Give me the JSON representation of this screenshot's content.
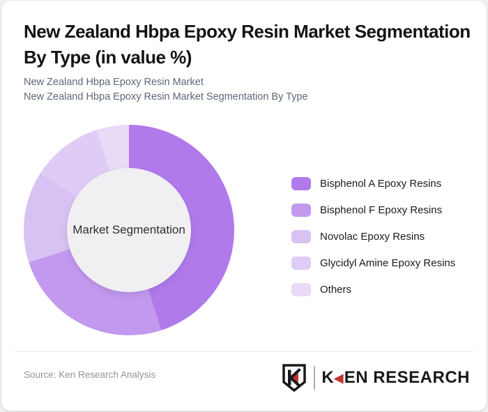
{
  "page": {
    "background_color": "#f1f2f4",
    "card_background": "#ffffff"
  },
  "header": {
    "title_line1": "New Zealand Hbpa Epoxy Resin Market Segmentation",
    "title_line2": "By Type (in value %)",
    "subtitle1": "New Zealand Hbpa Epoxy Resin Market",
    "subtitle2": "New Zealand Hbpa Epoxy Resin Market Segmentation By Type"
  },
  "chart_data": {
    "type": "pie",
    "variant": "donut",
    "title": "New Zealand Hbpa Epoxy Resin Market Segmentation By Type (in value %)",
    "unit": "%",
    "start_angle_deg": 0,
    "direction": "clockwise",
    "center_label": "Market Segmentation",
    "hole_color": "#f0f0f2",
    "legend_position": "right",
    "data_labels_shown": false,
    "series": [
      {
        "name": "Bisphenol A Epoxy Resins",
        "value": 45,
        "color": "#b07aeb"
      },
      {
        "name": "Bisphenol F Epoxy Resins",
        "value": 25,
        "color": "#c299ee"
      },
      {
        "name": "Novolac Epoxy Resins",
        "value": 14,
        "color": "#d8c1f3"
      },
      {
        "name": "Glycidyl Amine Epoxy Resins",
        "value": 11,
        "color": "#dfccf6"
      },
      {
        "name": "Others",
        "value": 5,
        "color": "#e9daf8"
      }
    ]
  },
  "footer": {
    "source": "Source: Ken Research Analysis",
    "logo": {
      "wordmark_k": "K",
      "wordmark_arrow": "◀",
      "wordmark_rest": "EN RESEARCH",
      "accent_color": "#c6332e",
      "text_color": "#17191d"
    }
  }
}
